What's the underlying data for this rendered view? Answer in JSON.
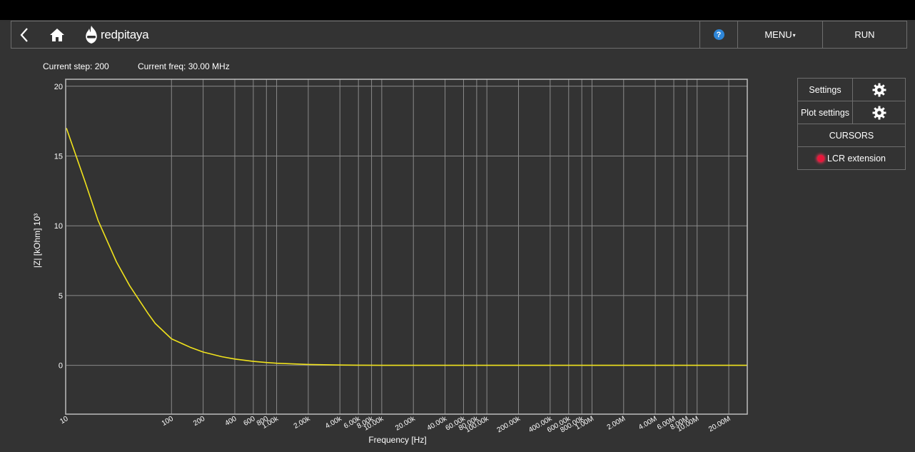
{
  "app": {
    "logo_text": "redpitaya"
  },
  "nav": {
    "help_label": "?",
    "menu_label": "MENU",
    "run_label": "RUN"
  },
  "status": {
    "step": "Current step: 200",
    "freq": "Current freq: 30.00 MHz"
  },
  "panel": {
    "settings_label": "Settings",
    "plot_settings_label": "Plot settings",
    "cursors_label": "CURSORS",
    "lcr_label": "LCR extension",
    "lcr_led_color": "#e8173a"
  },
  "colors": {
    "background": "#333333",
    "trace": "#f0e21c",
    "grid": "#8a8a8a"
  },
  "chart_data": {
    "type": "line",
    "xlabel": "Frequency [Hz]",
    "ylabel": "|Z| [kOhm] 10³",
    "x_scale": "log",
    "xlim": [
      10,
      30000000
    ],
    "ylim": [
      -3.5,
      20.5
    ],
    "y_ticks": [
      0,
      5,
      10,
      15,
      20
    ],
    "x_ticks": [
      {
        "value": 10,
        "label": "10"
      },
      {
        "value": 100,
        "label": "100"
      },
      {
        "value": 200,
        "label": "200"
      },
      {
        "value": 400,
        "label": "400"
      },
      {
        "value": 600,
        "label": "600"
      },
      {
        "value": 800,
        "label": "800"
      },
      {
        "value": 1000,
        "label": "1.00k"
      },
      {
        "value": 2000,
        "label": "2.00k"
      },
      {
        "value": 4000,
        "label": "4.00k"
      },
      {
        "value": 6000,
        "label": "6.00k"
      },
      {
        "value": 8000,
        "label": "8.00k"
      },
      {
        "value": 10000,
        "label": "10.00k"
      },
      {
        "value": 20000,
        "label": "20.00k"
      },
      {
        "value": 40000,
        "label": "40.00k"
      },
      {
        "value": 60000,
        "label": "60.00k"
      },
      {
        "value": 80000,
        "label": "80.00k"
      },
      {
        "value": 100000,
        "label": "100.00k"
      },
      {
        "value": 200000,
        "label": "200.00k"
      },
      {
        "value": 400000,
        "label": "400.00k"
      },
      {
        "value": 600000,
        "label": "600.00k"
      },
      {
        "value": 800000,
        "label": "800.00k"
      },
      {
        "value": 1000000,
        "label": "1.00M"
      },
      {
        "value": 2000000,
        "label": "2.00M"
      },
      {
        "value": 4000000,
        "label": "4.00M"
      },
      {
        "value": 6000000,
        "label": "6.00M"
      },
      {
        "value": 8000000,
        "label": "8.00M"
      },
      {
        "value": 10000000,
        "label": "10.00M"
      },
      {
        "value": 20000000,
        "label": "20.00M"
      }
    ],
    "series": [
      {
        "x": [
          10,
          15,
          20,
          30,
          40,
          50,
          60,
          70,
          100,
          150,
          200,
          300,
          400,
          600,
          800,
          1000,
          2000,
          4000,
          6000,
          10000,
          100000,
          1000000,
          10000000,
          30000000
        ],
        "y": [
          17.0,
          13.2,
          10.4,
          7.4,
          5.7,
          4.6,
          3.7,
          3.0,
          1.9,
          1.3,
          0.95,
          0.62,
          0.45,
          0.28,
          0.2,
          0.15,
          0.06,
          0.02,
          0.01,
          0.0,
          0.0,
          0.0,
          0.0,
          0.0
        ]
      }
    ]
  }
}
